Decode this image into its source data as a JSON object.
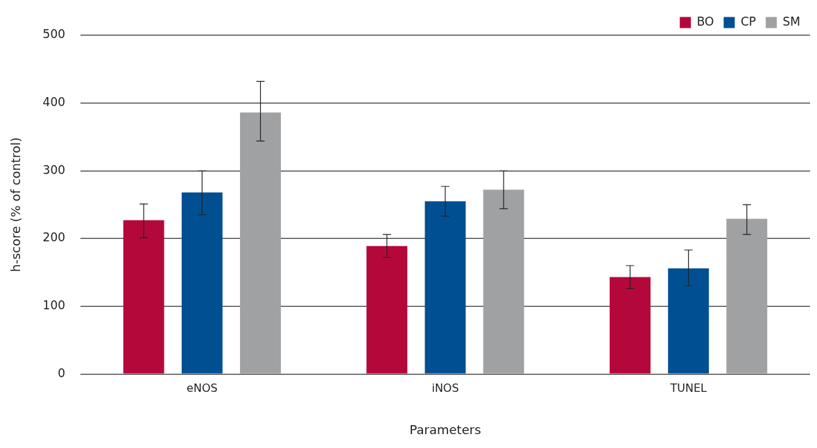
{
  "chart_data": {
    "type": "bar",
    "xlabel": "Parameters",
    "ylabel": "h-score (% of control)",
    "categories": [
      "eNOS",
      "iNOS",
      "TUNEL"
    ],
    "series": [
      {
        "name": "BO",
        "color": "#b5083a",
        "values": [
          227,
          189,
          143
        ],
        "errors": [
          [
            201,
            251
          ],
          [
            172,
            206
          ],
          [
            126,
            160
          ]
        ]
      },
      {
        "name": "CP",
        "color": "#004f93",
        "values": [
          268,
          255,
          156
        ],
        "errors": [
          [
            235,
            300
          ],
          [
            233,
            277
          ],
          [
            130,
            183
          ]
        ]
      },
      {
        "name": "SM",
        "color": "#a0a1a3",
        "values": [
          386,
          272,
          229
        ],
        "errors": [
          [
            344,
            432
          ],
          [
            244,
            300
          ],
          [
            206,
            250
          ]
        ]
      }
    ],
    "ylim": [
      0,
      500
    ],
    "yticks": [
      0,
      100,
      200,
      300,
      400,
      500
    ],
    "grid": "y",
    "legend": "top right"
  }
}
